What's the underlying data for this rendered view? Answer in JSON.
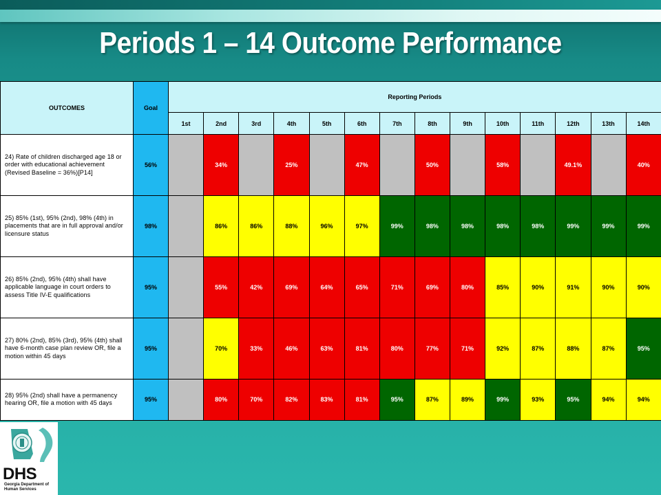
{
  "title": "Periods 1 – 14 Outcome Performance",
  "table": {
    "outcomes_header": "OUTCOMES",
    "goal_header": "Goal",
    "reporting_header": "Reporting Periods",
    "periods": [
      "1st",
      "2nd",
      "3rd",
      "4th",
      "5th",
      "6th",
      "7th",
      "8th",
      "9th",
      "10th",
      "11th",
      "12th",
      "13th",
      "14th"
    ],
    "rows": [
      {
        "outcome": "24) Rate of children discharged age 18 or order with educational achievement (Revised Baseline = 36%)[P14]",
        "goal": "56%",
        "cells": [
          {
            "v": "",
            "c": "gray"
          },
          {
            "v": "34%",
            "c": "red"
          },
          {
            "v": "",
            "c": "gray"
          },
          {
            "v": "25%",
            "c": "red"
          },
          {
            "v": "",
            "c": "gray"
          },
          {
            "v": "47%",
            "c": "red"
          },
          {
            "v": "",
            "c": "gray"
          },
          {
            "v": "50%",
            "c": "red"
          },
          {
            "v": "",
            "c": "gray"
          },
          {
            "v": "58%",
            "c": "red"
          },
          {
            "v": "",
            "c": "gray"
          },
          {
            "v": "49.1%",
            "c": "red"
          },
          {
            "v": "",
            "c": "gray"
          },
          {
            "v": "40%",
            "c": "red"
          }
        ]
      },
      {
        "outcome": "25) 85% (1st), 95% (2nd), 98% (4th) in placements that are in full approval and/or licensure status",
        "goal": "98%",
        "cells": [
          {
            "v": "",
            "c": "gray"
          },
          {
            "v": "86%",
            "c": "yellow"
          },
          {
            "v": "86%",
            "c": "yellow"
          },
          {
            "v": "88%",
            "c": "yellow"
          },
          {
            "v": "96%",
            "c": "yellow"
          },
          {
            "v": "97%",
            "c": "yellow"
          },
          {
            "v": "99%",
            "c": "green"
          },
          {
            "v": "98%",
            "c": "green"
          },
          {
            "v": "98%",
            "c": "green"
          },
          {
            "v": "98%",
            "c": "green"
          },
          {
            "v": "98%",
            "c": "green"
          },
          {
            "v": "99%",
            "c": "green"
          },
          {
            "v": "99%",
            "c": "green"
          },
          {
            "v": "99%",
            "c": "green"
          }
        ]
      },
      {
        "outcome": "26) 85% (2nd), 95% (4th) shall have applicable language in court orders to assess Title IV-E qualifications",
        "goal": "95%",
        "cells": [
          {
            "v": "",
            "c": "gray"
          },
          {
            "v": "55%",
            "c": "red"
          },
          {
            "v": "42%",
            "c": "red"
          },
          {
            "v": "69%",
            "c": "red"
          },
          {
            "v": "64%",
            "c": "red"
          },
          {
            "v": "65%",
            "c": "red"
          },
          {
            "v": "71%",
            "c": "red"
          },
          {
            "v": "69%",
            "c": "red"
          },
          {
            "v": "80%",
            "c": "red"
          },
          {
            "v": "85%",
            "c": "yellow"
          },
          {
            "v": "90%",
            "c": "yellow"
          },
          {
            "v": "91%",
            "c": "yellow"
          },
          {
            "v": "90%",
            "c": "yellow"
          },
          {
            "v": "90%",
            "c": "yellow"
          }
        ]
      },
      {
        "outcome": "27) 80% (2nd), 85% (3rd), 95% (4th) shall have 6-month case plan review OR, file a motion within 45 days",
        "goal": "95%",
        "cells": [
          {
            "v": "",
            "c": "gray"
          },
          {
            "v": "70%",
            "c": "yellow"
          },
          {
            "v": "33%",
            "c": "red"
          },
          {
            "v": "46%",
            "c": "red"
          },
          {
            "v": "63%",
            "c": "red"
          },
          {
            "v": "81%",
            "c": "red"
          },
          {
            "v": "80%",
            "c": "red"
          },
          {
            "v": "77%",
            "c": "red"
          },
          {
            "v": "71%",
            "c": "red"
          },
          {
            "v": "92%",
            "c": "yellow"
          },
          {
            "v": "87%",
            "c": "yellow"
          },
          {
            "v": "88%",
            "c": "yellow"
          },
          {
            "v": "87%",
            "c": "yellow"
          },
          {
            "v": "95%",
            "c": "green"
          }
        ]
      },
      {
        "outcome": "28) 95% (2nd) shall have a permanency hearing OR, file a motion with 45 days",
        "goal": "95%",
        "cells": [
          {
            "v": "",
            "c": "gray"
          },
          {
            "v": "80%",
            "c": "red"
          },
          {
            "v": "70%",
            "c": "red"
          },
          {
            "v": "82%",
            "c": "red"
          },
          {
            "v": "83%",
            "c": "red"
          },
          {
            "v": "81%",
            "c": "red"
          },
          {
            "v": "95%",
            "c": "green"
          },
          {
            "v": "87%",
            "c": "yellow"
          },
          {
            "v": "89%",
            "c": "yellow"
          },
          {
            "v": "99%",
            "c": "green"
          },
          {
            "v": "93%",
            "c": "yellow"
          },
          {
            "v": "95%",
            "c": "green"
          },
          {
            "v": "94%",
            "c": "yellow"
          },
          {
            "v": "94%",
            "c": "yellow"
          }
        ]
      }
    ]
  },
  "logo": {
    "name": "DHS",
    "subtitle": "Georgia Department of Human Services"
  }
}
